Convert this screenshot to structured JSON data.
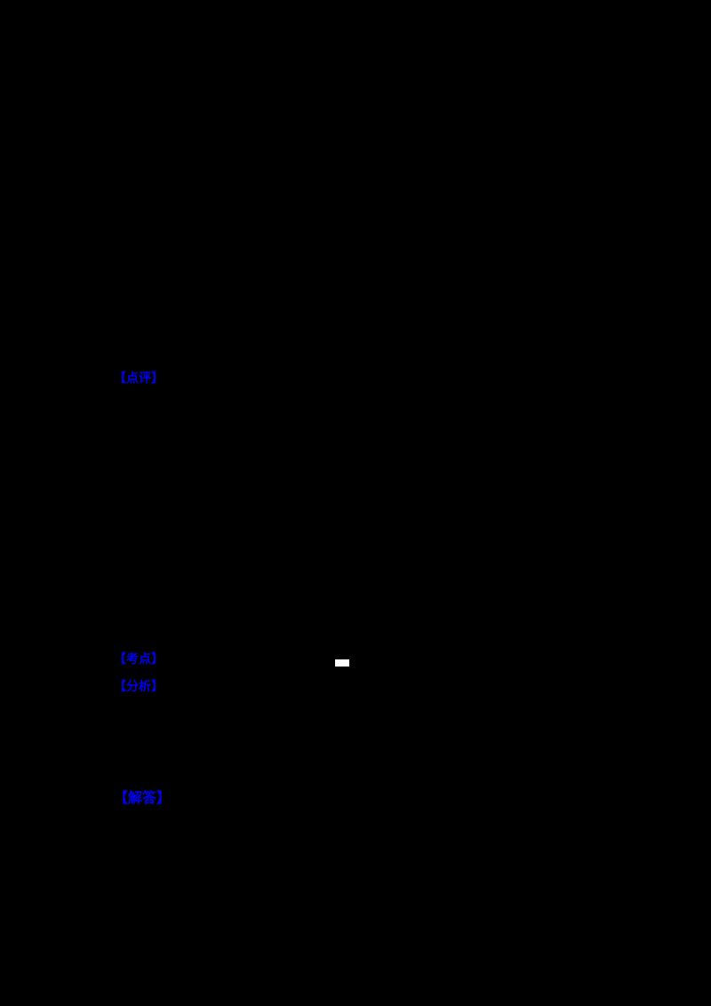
{
  "page": {
    "background_color": "#000000",
    "link_color": "#0000EE",
    "links": {
      "review": {
        "label": "【点评】"
      },
      "point": {
        "label": "【考点】"
      },
      "analysis": {
        "label": "【分析】"
      },
      "solution": {
        "label": "【解答】"
      }
    },
    "white_marker": {
      "color": "#FFFFFF"
    }
  }
}
